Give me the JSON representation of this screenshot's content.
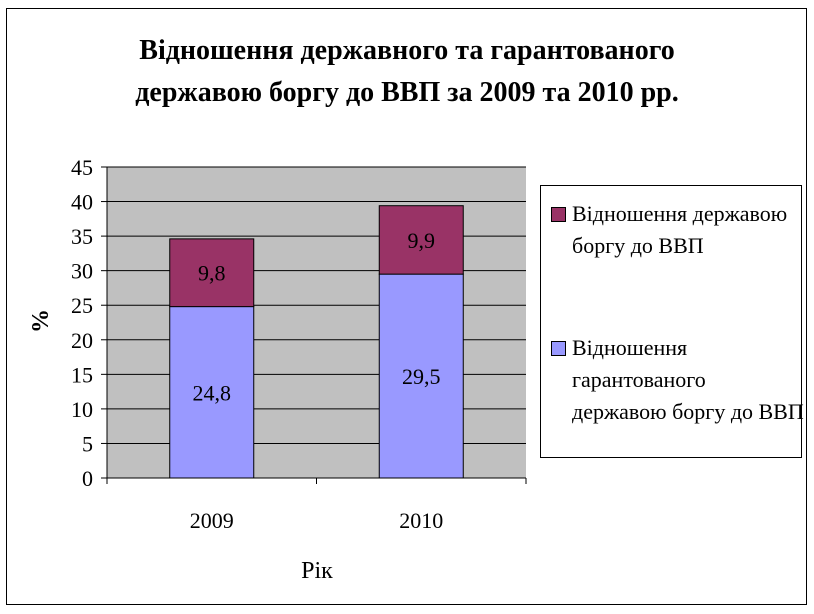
{
  "title_lines": [
    "Відношення державного та гарантованого",
    "державою боргу до ВВП за 2009 та 2010 рр."
  ],
  "chart_data": {
    "type": "bar",
    "stacked": true,
    "title": "Відношення державного та гарантованого державою боргу до ВВП за 2009 та 2010 рр.",
    "xlabel": "Рік",
    "ylabel": "%",
    "ylim": [
      0,
      45
    ],
    "yticks": [
      "0",
      "5",
      "10",
      "15",
      "20",
      "25",
      "30",
      "35",
      "40",
      "45"
    ],
    "grid": true,
    "legend_position": "right",
    "categories": [
      "2009",
      "2010"
    ],
    "series": [
      {
        "name": "Відношення гарантованого державою боргу до ВВП",
        "values": [
          24.8,
          29.5
        ],
        "labels": [
          "24,8",
          "29,5"
        ],
        "color": "#9999ff"
      },
      {
        "name": "Відношення державою боргу до ВВП",
        "values": [
          9.8,
          9.9
        ],
        "labels": [
          "9,8",
          "9,9"
        ],
        "color": "#993366"
      }
    ]
  },
  "colors": {
    "plot_background": "#c0c0c0",
    "frame": "#000000"
  }
}
